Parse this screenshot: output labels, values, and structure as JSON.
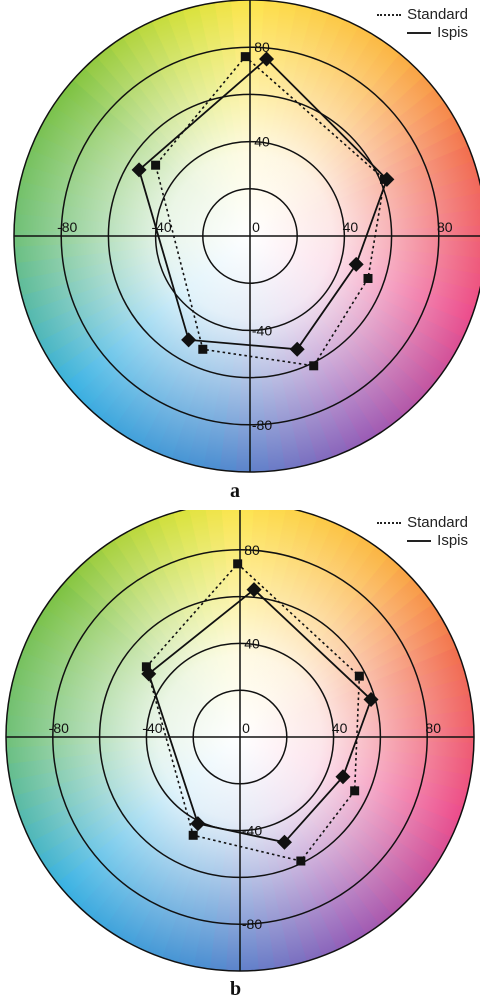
{
  "legend": {
    "standard_label": "Standard",
    "ispis_label": "Ispis"
  },
  "panels": [
    {
      "label": "a"
    },
    {
      "label": "b"
    }
  ],
  "chart_data": [
    {
      "type": "scatter",
      "title": "",
      "panel_label": "a",
      "axis_range": [
        -100,
        100
      ],
      "radial_rings": [
        20,
        40,
        60,
        80,
        100
      ],
      "x_ticks": [
        "-80",
        "-40",
        "0",
        "40",
        "80"
      ],
      "y_ticks": [
        "80",
        "40",
        "-40",
        "-80"
      ],
      "grid": true,
      "legend_position": "top-right",
      "series": [
        {
          "name": "Standard",
          "line_style": "dotted",
          "marker": "square",
          "points": [
            [
              -2,
              76
            ],
            [
              57,
              24
            ],
            [
              50,
              -18
            ],
            [
              27,
              -55
            ],
            [
              -20,
              -48
            ],
            [
              -40,
              30
            ],
            [
              -2,
              76
            ]
          ]
        },
        {
          "name": "Ispis",
          "line_style": "solid",
          "marker": "diamond",
          "points": [
            [
              7,
              75
            ],
            [
              58,
              24
            ],
            [
              45,
              -12
            ],
            [
              20,
              -48
            ],
            [
              -26,
              -44
            ],
            [
              -47,
              28
            ],
            [
              7,
              75
            ]
          ]
        }
      ]
    },
    {
      "type": "scatter",
      "title": "",
      "panel_label": "b",
      "axis_range": [
        -100,
        100
      ],
      "radial_rings": [
        20,
        40,
        60,
        80,
        100
      ],
      "x_ticks": [
        "-80",
        "-40",
        "0",
        "40",
        "80"
      ],
      "y_ticks": [
        "80",
        "40",
        "-40",
        "-80"
      ],
      "grid": true,
      "legend_position": "top-right",
      "series": [
        {
          "name": "Standard",
          "line_style": "dotted",
          "marker": "square",
          "points": [
            [
              -1,
              74
            ],
            [
              51,
              26
            ],
            [
              49,
              -23
            ],
            [
              26,
              -53
            ],
            [
              -20,
              -42
            ],
            [
              -40,
              30
            ],
            [
              -1,
              74
            ]
          ]
        },
        {
          "name": "Ispis",
          "line_style": "solid",
          "marker": "diamond",
          "points": [
            [
              6,
              63
            ],
            [
              56,
              16
            ],
            [
              44,
              -17
            ],
            [
              19,
              -45
            ],
            [
              -18,
              -37
            ],
            [
              -39,
              27
            ],
            [
              6,
              63
            ]
          ]
        }
      ]
    }
  ]
}
